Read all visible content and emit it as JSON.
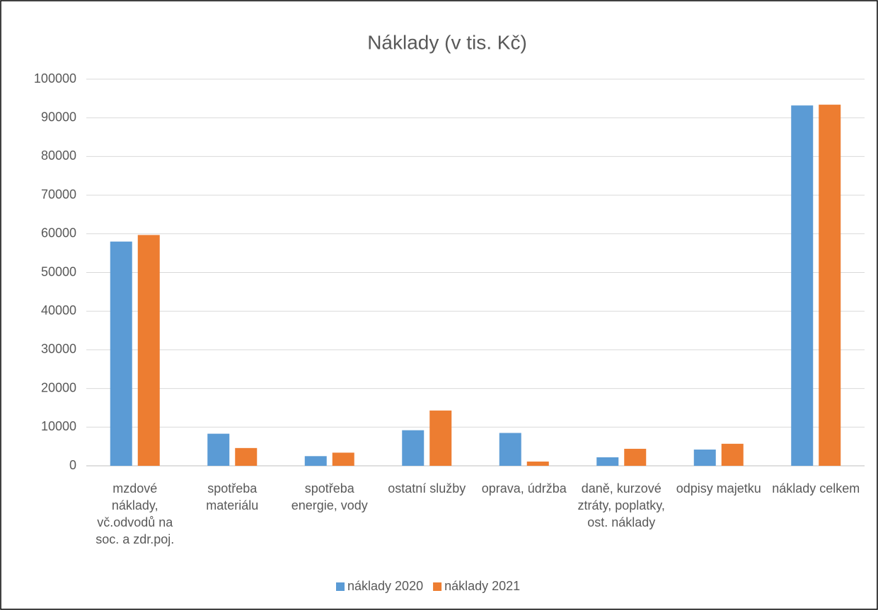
{
  "chart_data": {
    "type": "bar",
    "title": "Náklady (v tis. Kč)",
    "categories": [
      "mzdové náklady, vč.odvodů na soc. a zdr.poj.",
      "spotřeba materiálu",
      "spotřeba energie, vody",
      "ostatní služby",
      "oprava, údržba",
      "daně, kurzové ztráty, poplatky, ost. náklady",
      "odpisy majetku",
      "náklady celkem"
    ],
    "series": [
      {
        "name": "náklady 2020",
        "color": "#5b9bd5",
        "values": [
          58000,
          8300,
          2500,
          9200,
          8500,
          2200,
          4200,
          93200
        ]
      },
      {
        "name": "náklady 2021",
        "color": "#ed7d31",
        "values": [
          59700,
          4600,
          3400,
          14300,
          1100,
          4400,
          5700,
          93400
        ]
      }
    ],
    "ylim": [
      0,
      100000
    ],
    "yticks": [
      0,
      10000,
      20000,
      30000,
      40000,
      50000,
      60000,
      70000,
      80000,
      90000,
      100000
    ],
    "grid": true,
    "legend": "bottom"
  }
}
